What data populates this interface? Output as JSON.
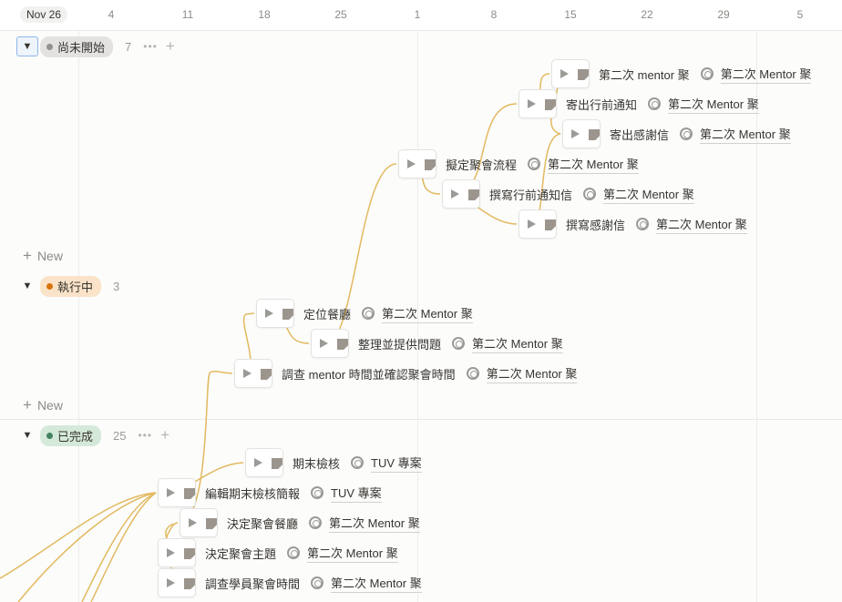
{
  "timeline": {
    "ticks": [
      "Nov 26",
      "4",
      "11",
      "18",
      "25",
      "1",
      "8",
      "15",
      "22",
      "29",
      "5"
    ],
    "new_label": "New",
    "arrow_color": "#e2b95f"
  },
  "groups": [
    {
      "label": "尚未開始",
      "count": "7",
      "dot_color": "#91918e",
      "bg": "#e3e2e0"
    },
    {
      "label": "執行中",
      "count": "3",
      "dot_color": "#d9730d",
      "bg": "#fae3c8"
    },
    {
      "label": "已完成",
      "count": "25",
      "dot_color": "#448361",
      "bg": "#d5e9da"
    }
  ],
  "items": [
    {
      "title": "第二次 mentor 聚",
      "relation": "第二次 Mentor 聚"
    },
    {
      "title": "寄出行前通知",
      "relation": "第二次 Mentor 聚"
    },
    {
      "title": "寄出感謝信",
      "relation": "第二次 Mentor 聚"
    },
    {
      "title": "擬定聚會流程",
      "relation": "第二次 Mentor 聚"
    },
    {
      "title": "撰寫行前通知信",
      "relation": "第二次 Mentor 聚"
    },
    {
      "title": "撰寫感謝信",
      "relation": "第二次 Mentor 聚"
    },
    {
      "title": "定位餐廳",
      "relation": "第二次 Mentor 聚"
    },
    {
      "title": "整理並提供問題",
      "relation": "第二次 Mentor 聚"
    },
    {
      "title": "調查 mentor 時間並確認聚會時間",
      "relation": "第二次 Mentor 聚"
    },
    {
      "title": "期末檢核",
      "relation": "TUV 專案"
    },
    {
      "title": "編輯期末檢核簡報",
      "relation": "TUV 專案"
    },
    {
      "title": "決定聚會餐廳",
      "relation": "第二次 Mentor 聚"
    },
    {
      "title": "決定聚會主題",
      "relation": "第二次 Mentor 聚"
    },
    {
      "title": "調查學員聚會時間",
      "relation": "第二次 Mentor 聚"
    }
  ]
}
